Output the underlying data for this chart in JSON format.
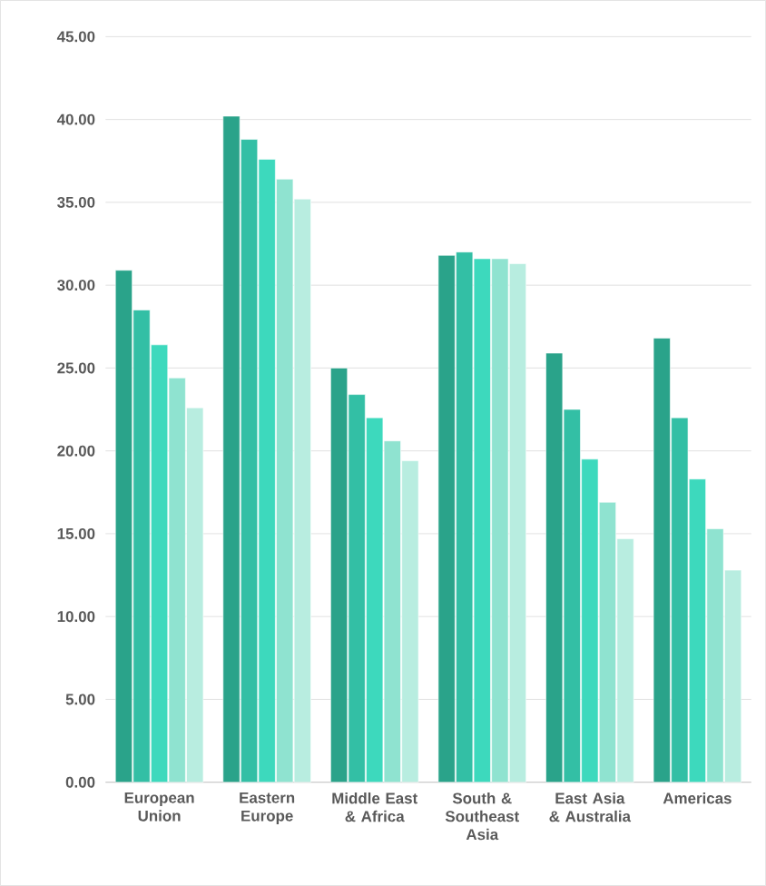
{
  "chart_data": {
    "type": "bar",
    "categories": [
      "European Union",
      "Eastern Europe",
      "Middle East & Africa",
      "South & Southeast Asia",
      "East Asia & Australia",
      "Americas"
    ],
    "series": [
      {
        "color": "#2aa38a",
        "values": [
          30.9,
          40.2,
          25.0,
          31.8,
          25.9,
          26.8
        ]
      },
      {
        "color": "#33bfa5",
        "values": [
          28.5,
          38.8,
          23.4,
          32.0,
          22.5,
          22.0
        ]
      },
      {
        "color": "#3dd9bd",
        "values": [
          26.4,
          37.6,
          22.0,
          31.6,
          19.5,
          18.3
        ]
      },
      {
        "color": "#8fe3d0",
        "values": [
          24.4,
          36.4,
          20.6,
          31.6,
          16.9,
          15.3
        ]
      },
      {
        "color": "#b8ede0",
        "values": [
          22.6,
          35.2,
          19.4,
          31.3,
          14.7,
          12.8
        ]
      }
    ],
    "ylim": [
      0,
      45
    ],
    "yticks": [
      {
        "value": 0,
        "label": "0.00"
      },
      {
        "value": 5,
        "label": "5.00"
      },
      {
        "value": 10,
        "label": "10.00"
      },
      {
        "value": 15,
        "label": "15.00"
      },
      {
        "value": 20,
        "label": "20.00"
      },
      {
        "value": 25,
        "label": "25.00"
      },
      {
        "value": 30,
        "label": "30.00"
      },
      {
        "value": 35,
        "label": "35.00"
      },
      {
        "value": 40,
        "label": "40.00"
      },
      {
        "value": 45,
        "label": "45.00"
      }
    ],
    "grid": "y"
  }
}
